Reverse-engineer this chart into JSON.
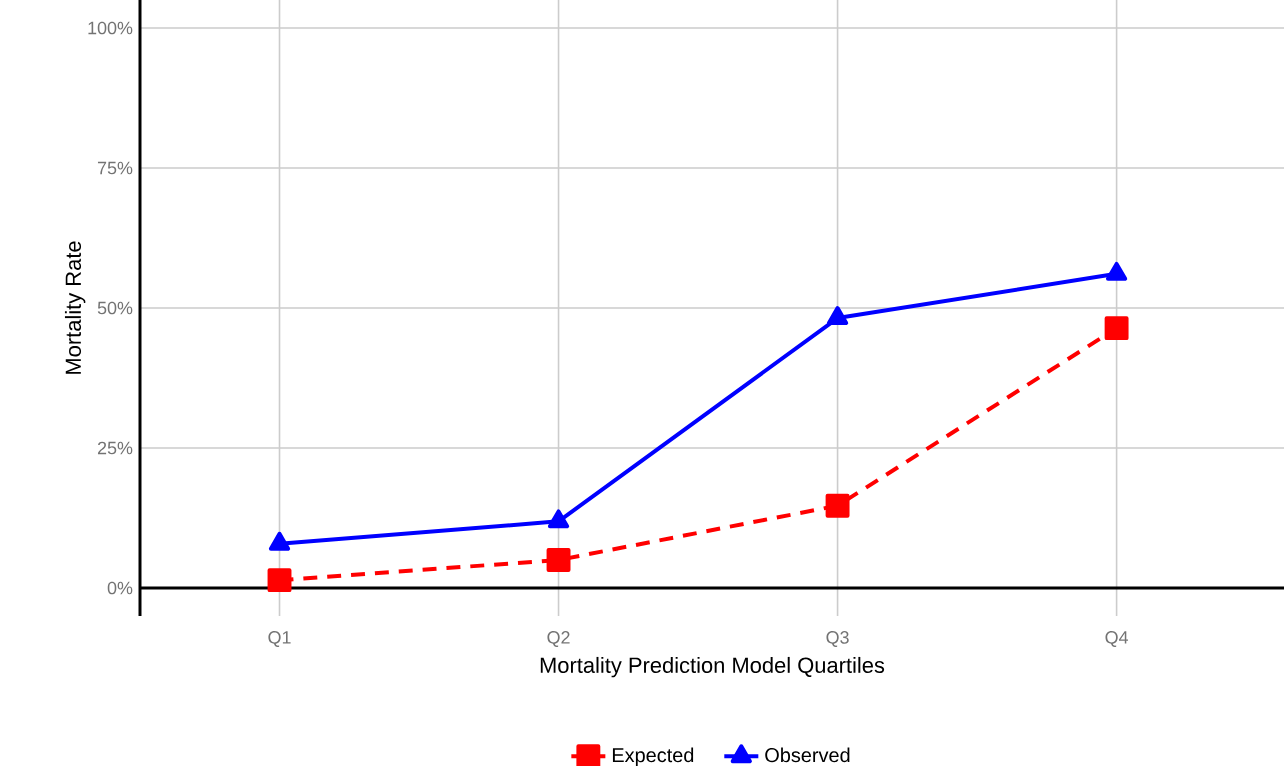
{
  "chart_data": {
    "type": "line",
    "xlabel": "Mortality Prediction Model Quartiles",
    "ylabel": "Mortality Rate",
    "categories": [
      "Q1",
      "Q2",
      "Q3",
      "Q4"
    ],
    "series": [
      {
        "name": "Expected",
        "color": "#ff0000",
        "values": [
          1.4,
          5,
          14.7,
          46.4
        ],
        "marker": "square",
        "line_style": "dashed"
      },
      {
        "name": "Observed",
        "color": "#0000ff",
        "values": [
          7.9,
          11.9,
          48.2,
          56.1
        ],
        "marker": "triangle",
        "line_style": "solid"
      }
    ],
    "ylim": [
      -5,
      105
    ],
    "yticks": [
      {
        "value": 0,
        "label": "0%"
      },
      {
        "value": 25,
        "label": "25%"
      },
      {
        "value": 50,
        "label": "50%"
      },
      {
        "value": 75,
        "label": "75%"
      },
      {
        "value": 100,
        "label": "100%"
      }
    ],
    "grid": true,
    "legend": "bottom"
  }
}
